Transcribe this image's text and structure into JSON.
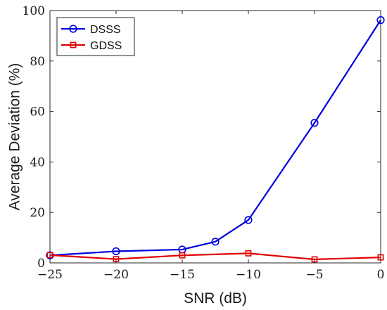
{
  "chart_data": {
    "type": "line",
    "title": "",
    "xlabel": "SNR (dB)",
    "ylabel": "Average Deviation (%)",
    "xlim": [
      -25,
      0
    ],
    "ylim": [
      0,
      100
    ],
    "xticks": [
      -25,
      -20,
      -15,
      -10,
      -5,
      0
    ],
    "yticks": [
      0,
      20,
      40,
      60,
      80,
      100
    ],
    "x_tick_labels": [
      "−25",
      "−20",
      "−15",
      "−10",
      "−5",
      "0"
    ],
    "y_tick_labels": [
      "0",
      "20",
      "40",
      "60",
      "80",
      "100"
    ],
    "grid": false,
    "legend_position": "top-left",
    "series": [
      {
        "name": "DSSS",
        "color": "#0000e0",
        "marker": "circle",
        "x": [
          -25,
          -20,
          -15,
          -12.5,
          -10,
          -5,
          0
        ],
        "y": [
          3.0,
          4.6,
          5.3,
          8.4,
          17.0,
          55.5,
          96.2
        ]
      },
      {
        "name": "GDSS",
        "color": "#e00000",
        "marker": "square",
        "x": [
          -25,
          -20,
          -15,
          -10,
          -5,
          0
        ],
        "y": [
          3.1,
          1.5,
          3.0,
          3.8,
          1.4,
          2.2
        ]
      }
    ]
  }
}
